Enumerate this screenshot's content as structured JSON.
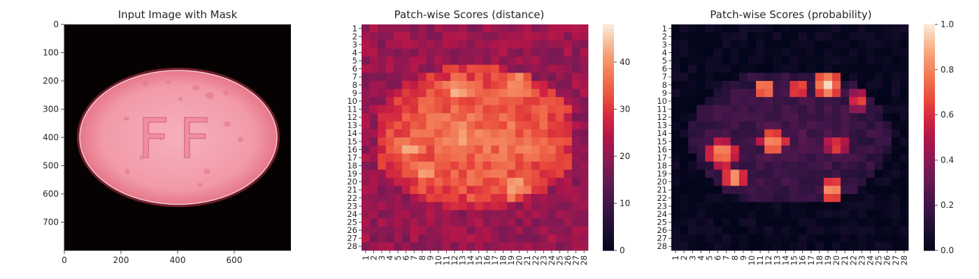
{
  "chart_data": [
    {
      "type": "image",
      "title": "Input Image with Mask",
      "xticks": [
        "0",
        "200",
        "400",
        "600"
      ],
      "yticks": [
        "0",
        "100",
        "200",
        "300",
        "400",
        "500",
        "600",
        "700"
      ],
      "xlim": [
        0,
        800
      ],
      "ylim": [
        800,
        0
      ],
      "image_description": "pink oval pill on black background embossed with letters FF",
      "embossed_text": "FF"
    },
    {
      "type": "heatmap",
      "title": "Patch-wise Scores (distance)",
      "xticklabels": [
        "1",
        "2",
        "3",
        "4",
        "5",
        "6",
        "7",
        "8",
        "9",
        "10",
        "11",
        "12",
        "13",
        "14",
        "15",
        "16",
        "17",
        "18",
        "19",
        "20",
        "21",
        "22",
        "23",
        "24",
        "25",
        "26",
        "27",
        "28"
      ],
      "yticklabels": [
        "1",
        "2",
        "3",
        "4",
        "5",
        "6",
        "7",
        "8",
        "9",
        "10",
        "11",
        "12",
        "13",
        "14",
        "15",
        "16",
        "17",
        "18",
        "19",
        "20",
        "21",
        "22",
        "23",
        "24",
        "25",
        "26",
        "27",
        "28"
      ],
      "colorbar": {
        "ticks": [
          "0",
          "10",
          "20",
          "30",
          "40"
        ],
        "range": [
          0,
          48
        ],
        "colormap": "rocket"
      },
      "regions": [
        {
          "shape": "ellipse",
          "cx": 14.5,
          "cy": 14.5,
          "rx": 12.5,
          "ry": 9.0,
          "value": 33
        },
        {
          "shape": "ellipse",
          "cx": 14.5,
          "cy": 14.5,
          "rx": 11.5,
          "ry": 8.0,
          "value": 36
        },
        {
          "shape": "blob",
          "cx": 12.5,
          "cy": 8.5,
          "r": 1.8,
          "value": 44
        },
        {
          "shape": "blob",
          "cx": 19.5,
          "cy": 8.5,
          "r": 2.2,
          "value": 44
        },
        {
          "shape": "blob",
          "cx": 13.0,
          "cy": 14.5,
          "r": 1.6,
          "value": 47
        },
        {
          "shape": "blob",
          "cx": 6.5,
          "cy": 16.0,
          "r": 2.0,
          "value": 42
        },
        {
          "shape": "blob",
          "cx": 8.5,
          "cy": 19.0,
          "r": 1.6,
          "value": 41
        },
        {
          "shape": "blob",
          "cx": 19.5,
          "cy": 20.5,
          "r": 1.6,
          "value": 45
        },
        {
          "shape": "blob",
          "cx": 21.5,
          "cy": 15.0,
          "r": 2.0,
          "value": 40
        }
      ],
      "background_value": 21
    },
    {
      "type": "heatmap",
      "title": "Patch-wise Scores (probability)",
      "xticklabels": [
        "1",
        "2",
        "3",
        "4",
        "5",
        "6",
        "7",
        "8",
        "9",
        "10",
        "11",
        "12",
        "13",
        "14",
        "15",
        "16",
        "17",
        "18",
        "19",
        "20",
        "21",
        "22",
        "23",
        "24",
        "25",
        "26",
        "27",
        "28"
      ],
      "yticklabels": [
        "1",
        "2",
        "3",
        "4",
        "5",
        "6",
        "7",
        "8",
        "9",
        "10",
        "11",
        "12",
        "13",
        "14",
        "15",
        "16",
        "17",
        "18",
        "19",
        "20",
        "21",
        "22",
        "23",
        "24",
        "25",
        "26",
        "27",
        "28"
      ],
      "colorbar": {
        "ticks": [
          "0.0",
          "0.2",
          "0.4",
          "0.6",
          "0.8",
          "1.0"
        ],
        "range": [
          0,
          1
        ],
        "colormap": "rocket"
      },
      "regions": [
        {
          "shape": "ellipse",
          "cx": 14.5,
          "cy": 14.5,
          "rx": 12.0,
          "ry": 8.5,
          "value": 0.22
        },
        {
          "shape": "blob",
          "cx": 11.5,
          "cy": 8.5,
          "r": 1.4,
          "value": 0.95
        },
        {
          "shape": "blob",
          "cx": 19.0,
          "cy": 8.0,
          "r": 2.0,
          "value": 0.98
        },
        {
          "shape": "blob",
          "cx": 22.5,
          "cy": 10.0,
          "r": 1.2,
          "value": 0.75
        },
        {
          "shape": "blob",
          "cx": 12.5,
          "cy": 15.0,
          "r": 1.6,
          "value": 0.95
        },
        {
          "shape": "blob",
          "cx": 6.5,
          "cy": 16.5,
          "r": 1.8,
          "value": 0.9
        },
        {
          "shape": "blob",
          "cx": 8.0,
          "cy": 19.5,
          "r": 1.4,
          "value": 0.95
        },
        {
          "shape": "blob",
          "cx": 19.5,
          "cy": 21.0,
          "r": 1.5,
          "value": 0.98
        },
        {
          "shape": "blob",
          "cx": 20.0,
          "cy": 15.5,
          "r": 1.5,
          "value": 0.7
        },
        {
          "shape": "blob",
          "cx": 15.5,
          "cy": 8.5,
          "r": 1.2,
          "value": 0.85
        }
      ],
      "background_value": 0.02
    }
  ]
}
